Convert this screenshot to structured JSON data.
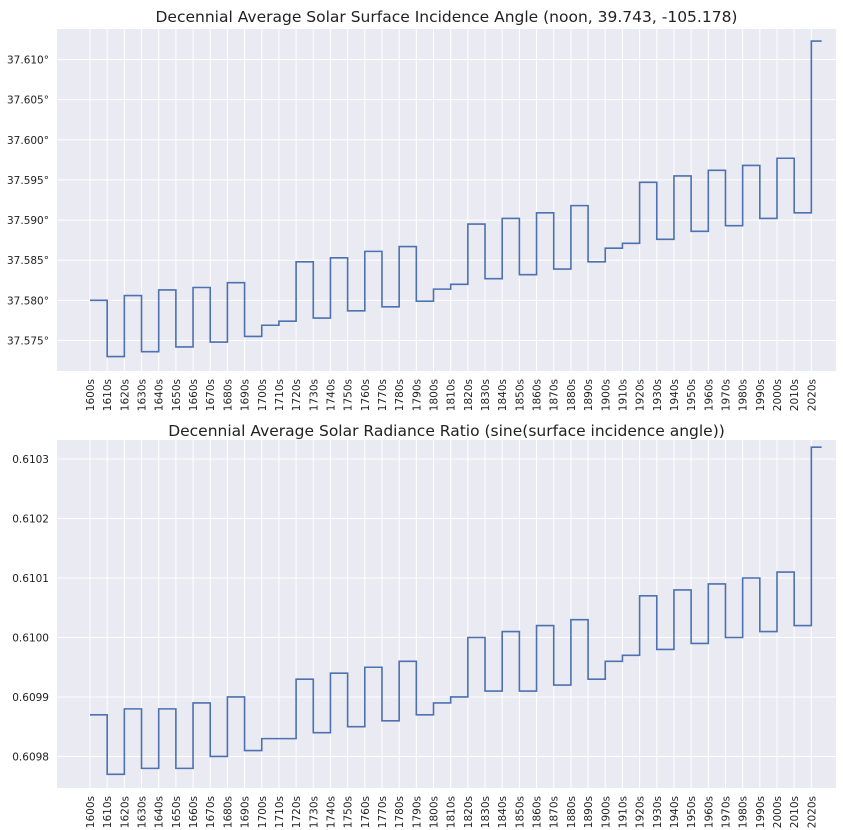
{
  "chart_data": [
    {
      "type": "line",
      "drawstyle": "steps-post",
      "title": "Decennial Average Solar Surface Incidence Angle (noon, 39.743, -105.178)",
      "xlabel": "",
      "ylabel": "",
      "categories": [
        "1600s",
        "1610s",
        "1620s",
        "1630s",
        "1640s",
        "1650s",
        "1660s",
        "1670s",
        "1680s",
        "1690s",
        "1700s",
        "1710s",
        "1720s",
        "1730s",
        "1740s",
        "1750s",
        "1760s",
        "1770s",
        "1780s",
        "1790s",
        "1800s",
        "1810s",
        "1820s",
        "1830s",
        "1840s",
        "1850s",
        "1860s",
        "1870s",
        "1880s",
        "1890s",
        "1900s",
        "1910s",
        "1920s",
        "1930s",
        "1940s",
        "1950s",
        "1960s",
        "1970s",
        "1980s",
        "1990s",
        "2000s",
        "2010s",
        "2020s"
      ],
      "values": [
        37.58,
        37.573,
        37.5806,
        37.5736,
        37.5813,
        37.5742,
        37.5816,
        37.5748,
        37.5822,
        37.5755,
        37.5769,
        37.5774,
        37.5848,
        37.5778,
        37.5853,
        37.5787,
        37.5861,
        37.5792,
        37.5867,
        37.5799,
        37.5814,
        37.582,
        37.5895,
        37.5827,
        37.5902,
        37.5832,
        37.5909,
        37.5839,
        37.5918,
        37.5848,
        37.5865,
        37.5871,
        37.5947,
        37.5876,
        37.5955,
        37.5886,
        37.5962,
        37.5893,
        37.5968,
        37.5902,
        37.5977,
        37.5909,
        37.6123
      ],
      "ytick_values": [
        37.575,
        37.58,
        37.585,
        37.59,
        37.595,
        37.6,
        37.605,
        37.61
      ],
      "ytick_labels": [
        "37.575°",
        "37.580°",
        "37.585°",
        "37.590°",
        "37.595°",
        "37.600°",
        "37.605°",
        "37.610°"
      ],
      "ylim": [
        37.5712,
        37.6138
      ],
      "grid": true,
      "color": "#4c72b0"
    },
    {
      "type": "line",
      "drawstyle": "steps-post",
      "title": "Decennial Average Solar Radiance Ratio (sine(surface incidence angle))",
      "xlabel": "",
      "ylabel": "",
      "categories": [
        "1600s",
        "1610s",
        "1620s",
        "1630s",
        "1640s",
        "1650s",
        "1660s",
        "1670s",
        "1680s",
        "1690s",
        "1700s",
        "1710s",
        "1720s",
        "1730s",
        "1740s",
        "1750s",
        "1760s",
        "1770s",
        "1780s",
        "1790s",
        "1800s",
        "1810s",
        "1820s",
        "1830s",
        "1840s",
        "1850s",
        "1860s",
        "1870s",
        "1880s",
        "1890s",
        "1900s",
        "1910s",
        "1920s",
        "1930s",
        "1940s",
        "1950s",
        "1960s",
        "1970s",
        "1980s",
        "1990s",
        "2000s",
        "2010s",
        "2020s"
      ],
      "values": [
        0.60987,
        0.60977,
        0.60988,
        0.60978,
        0.60988,
        0.60978,
        0.60989,
        0.6098,
        0.6099,
        0.60981,
        0.60983,
        0.60983,
        0.60993,
        0.60984,
        0.60994,
        0.60985,
        0.60995,
        0.60986,
        0.60996,
        0.60987,
        0.60989,
        0.6099,
        0.61,
        0.60991,
        0.61001,
        0.60991,
        0.61002,
        0.60992,
        0.61003,
        0.60993,
        0.60996,
        0.60997,
        0.61007,
        0.60998,
        0.61008,
        0.60999,
        0.61009,
        0.61,
        0.6101,
        0.61001,
        0.61011,
        0.61002,
        0.61032
      ],
      "ytick_values": [
        0.6098,
        0.6099,
        0.61,
        0.6101,
        0.6102,
        0.6103
      ],
      "ytick_labels": [
        "0.6098",
        "0.6099",
        "0.6100",
        "0.6101",
        "0.6102",
        "0.6103"
      ],
      "ylim": [
        0.609747,
        0.610332
      ],
      "grid": true,
      "color": "#4c72b0"
    }
  ]
}
